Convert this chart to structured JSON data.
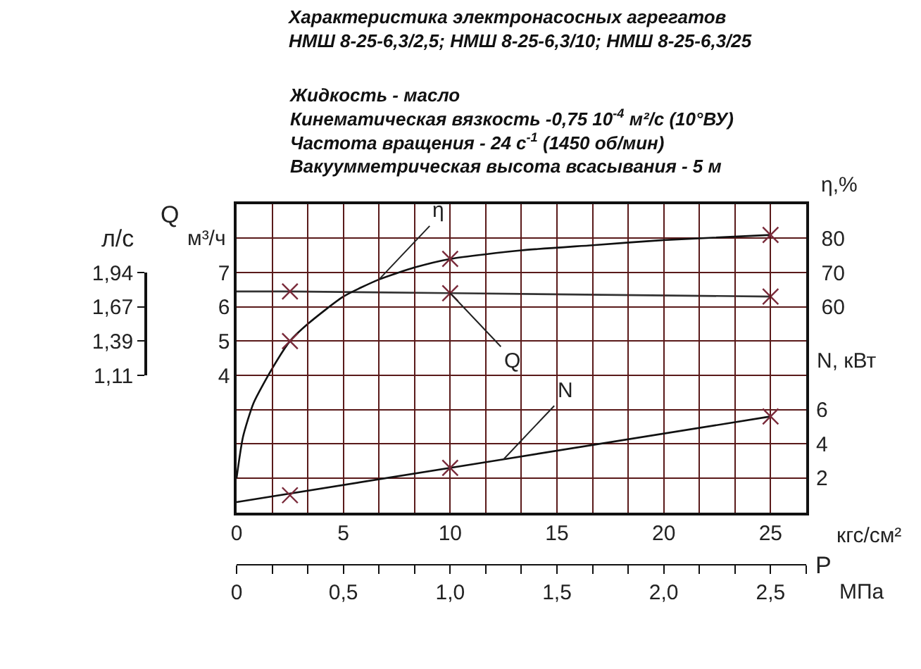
{
  "chart_data": {
    "type": "line",
    "title": "Характеристика электронасосных агрегатов\nНМШ 8-25-6,3/2,5; НМШ 8-25-6,3/10; НМШ 8-25-6,3/25",
    "subtitle": "Жидкость - масло\nКинематическая вязкость -0,75 10$^{-4}$ м²/с (10°ВУ)\nЧастота вращения - 24 с$^{-1}$ (1450 об/мин)\nВакуумметрическая высота всасывания - 5 м",
    "xlabel": "кгс/см²",
    "x2label": "МПа",
    "ylabel": "м³/ч",
    "y2label": "η,%",
    "y3label": "N, кВт",
    "annotations": [
      "Q",
      "P",
      "л/с",
      "1,11",
      "1,39",
      "1,67",
      "1,94"
    ],
    "xlim": [
      0,
      26.67
    ],
    "xticks": [
      0,
      {
        "value": 1.667,
        "label": null
      },
      {
        "value": 3.333,
        "label": null
      },
      5,
      {
        "value": 6.667,
        "label": null
      },
      {
        "value": 8.333,
        "label": null
      },
      10,
      {
        "value": 11.667,
        "label": null
      },
      {
        "value": 13.333,
        "label": null
      },
      15,
      {
        "value": 16.667,
        "label": null
      },
      {
        "value": 18.333,
        "label": null
      },
      20,
      {
        "value": 21.667,
        "label": null
      },
      {
        "value": 23.333,
        "label": null
      },
      25
    ],
    "x2lim": [
      0,
      2.667
    ],
    "x2ticks": [
      0,
      {
        "value": 0.167,
        "label": null
      },
      {
        "value": 0.333,
        "label": null
      },
      {
        "value": 0.5,
        "label": "0,5"
      },
      {
        "value": 0.667,
        "label": null
      },
      {
        "value": 0.833,
        "label": null
      },
      {
        "value": 1.0,
        "label": "1,0"
      },
      {
        "value": 1.167,
        "label": null
      },
      {
        "value": 1.333,
        "label": null
      },
      {
        "value": 1.5,
        "label": "1,5"
      },
      {
        "value": 1.667,
        "label": null
      },
      {
        "value": 1.833,
        "label": null
      },
      {
        "value": 2.0,
        "label": "2,0"
      },
      {
        "value": 2.167,
        "label": null
      },
      {
        "value": 2.333,
        "label": null
      },
      {
        "value": 2.5,
        "label": "2,5"
      },
      {
        "value": 2.667,
        "label": null
      }
    ],
    "ylim": [
      0,
      9
    ],
    "yticks": [
      {
        "value": 1,
        "label": null
      },
      {
        "value": 2,
        "label": null
      },
      {
        "value": 3,
        "label": null
      },
      4,
      5,
      6,
      7,
      {
        "value": 8,
        "label": null
      }
    ],
    "y2lim": [
      0,
      90
    ],
    "y2ticks": [
      60,
      70,
      80
    ],
    "y3lim": [
      0,
      18
    ],
    "y3ticks": [
      2,
      4,
      6
    ],
    "grid": true,
    "series": [
      {
        "name": "η",
        "axis": "y2",
        "color": "#111111",
        "marker": "none",
        "x": [
          0,
          0.3,
          0.8,
          1.667,
          2.5,
          3.333,
          5,
          6.667,
          8.333,
          10,
          13.333,
          16.667,
          20,
          25
        ],
        "values": [
          10,
          22,
          32,
          42,
          50,
          55,
          63,
          68,
          71.5,
          74,
          76.5,
          78,
          79.5,
          81
        ]
      },
      {
        "name": "Q",
        "axis": "y",
        "color": "#333333",
        "marker": "none",
        "x": [
          0,
          2.5,
          10,
          25
        ],
        "values": [
          6.45,
          6.45,
          6.4,
          6.3
        ]
      },
      {
        "name": "N",
        "axis": "y3",
        "color": "#111111",
        "marker": "none",
        "x": [
          0,
          12.5,
          25
        ],
        "values": [
          0.6,
          3.1,
          5.6
        ]
      },
      {
        "type": "scatter",
        "axis": "y2",
        "color": "#7a2a3a",
        "marker": "cross",
        "x": [
          2.5,
          10,
          25
        ],
        "values": [
          50,
          74,
          81
        ]
      },
      {
        "type": "scatter",
        "axis": "y",
        "color": "#7a2a3a",
        "marker": "cross",
        "x": [
          2.5,
          10,
          25
        ],
        "values": [
          6.45,
          6.4,
          6.3
        ]
      },
      {
        "type": "scatter",
        "axis": "y3",
        "color": "#7a2a3a",
        "marker": "cross",
        "x": [
          2.5,
          10,
          25
        ],
        "values": [
          1.0,
          2.6,
          5.6
        ]
      }
    ]
  }
}
